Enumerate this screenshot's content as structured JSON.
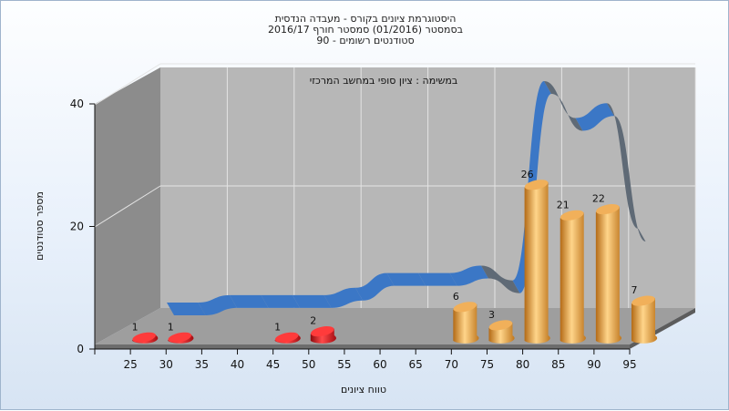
{
  "chart_data": {
    "type": "bar",
    "title_lines": [
      "היסטוגרמת ציונים בקורס - מעבדה הנדסית",
      "בסמסטר  (01/2016)  סמסטר חורף 2016/17",
      "סטודנטים רשומים - 90"
    ],
    "subtitle": "במשימה : ציון סופי במחשב המרכזי",
    "xlabel": "טווח ציונים",
    "ylabel": "מספר סטודנטים",
    "categories": [
      "25",
      "30",
      "35",
      "40",
      "45",
      "50",
      "55",
      "60",
      "65",
      "70",
      "75",
      "80",
      "85",
      "90",
      "95"
    ],
    "y_ticks": [
      "0",
      "20",
      "40"
    ],
    "ylim": [
      0,
      40
    ],
    "grid": true,
    "series": [
      {
        "values": [
          1,
          1,
          0,
          0,
          1,
          2,
          0,
          0,
          0,
          6,
          3,
          26,
          21,
          22,
          7
        ],
        "data_labels": [
          "1",
          "1",
          "",
          "",
          "1",
          "2",
          "",
          "",
          "",
          "6",
          "3",
          "26",
          "21",
          "22",
          "7"
        ],
        "bar_colors": [
          "#e0161c",
          "#e0161c",
          "",
          "",
          "#e0161c",
          "#e0161c",
          "",
          "",
          "",
          "#e8a33f",
          "#e8a33f",
          "#e8a33f",
          "#e8a33f",
          "#e8a33f",
          "#e8a33f"
        ]
      }
    ],
    "distribution_line": {
      "values": [
        0,
        0,
        1,
        1,
        1,
        1,
        2,
        4,
        4,
        4,
        5,
        3,
        30,
        25,
        27,
        10
      ],
      "colors": {
        "rising": "#3b77c6",
        "falling": "#5f6a76"
      }
    },
    "colors": {
      "wall": "#b7b7b7",
      "side_wall": "#8c8c8c",
      "floor": "#9e9e9e",
      "grid": "#e4e4e4"
    }
  }
}
